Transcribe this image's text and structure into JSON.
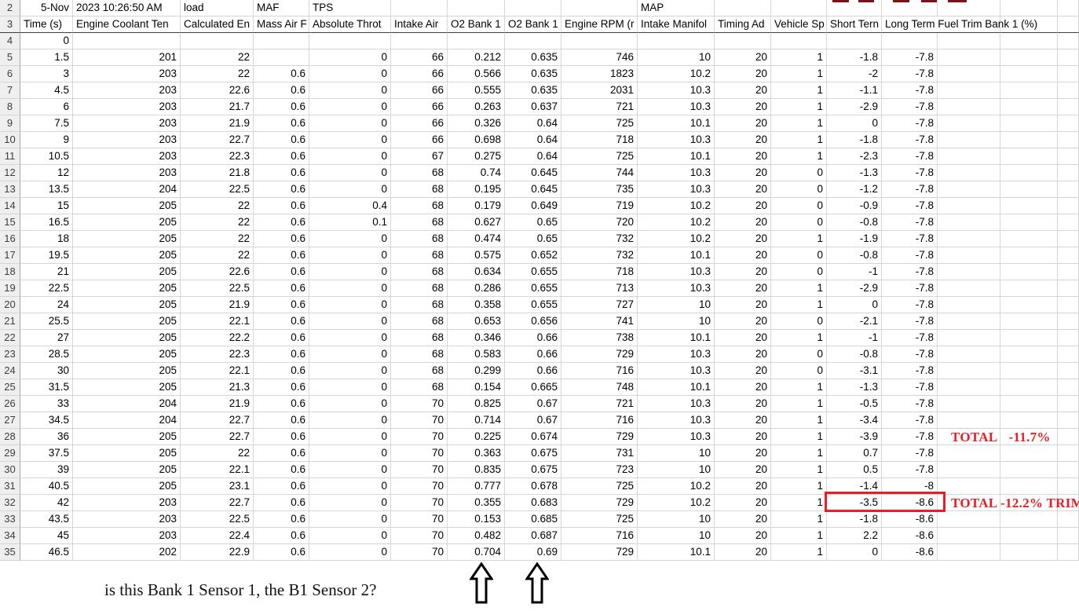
{
  "sheet": {
    "row2": {
      "A": "5-Nov",
      "B": "2023 10:26:50 AM",
      "C": "load",
      "D": "MAF",
      "E": "TPS",
      "J": "MAP"
    },
    "row2_number": "2",
    "row3_number": "3",
    "headers": [
      "Time (s)",
      "Engine Coolant Ten",
      "Calculated En",
      "Mass Air F",
      "Absolute Throt",
      "Intake Air",
      "O2 Bank 1",
      "O2 Bank 1",
      "Engine RPM (r",
      "Intake Manifol",
      "Timing Ad",
      "Vehicle Sp",
      "Short Tern",
      "Long Term Fuel Trim Bank 1 (%)"
    ],
    "rows": [
      {
        "n": "4",
        "cells": [
          "0",
          "",
          "",
          "",
          "",
          "",
          "",
          "",
          "",
          "",
          "",
          "",
          "",
          ""
        ]
      },
      {
        "n": "5",
        "cells": [
          "1.5",
          "201",
          "22",
          "",
          "0",
          "66",
          "0.212",
          "0.635",
          "746",
          "10",
          "20",
          "1",
          "-1.8",
          "-7.8"
        ]
      },
      {
        "n": "6",
        "cells": [
          "3",
          "203",
          "22",
          "0.6",
          "0",
          "66",
          "0.566",
          "0.635",
          "1823",
          "10.2",
          "20",
          "1",
          "-2",
          "-7.8"
        ]
      },
      {
        "n": "7",
        "cells": [
          "4.5",
          "203",
          "22.6",
          "0.6",
          "0",
          "66",
          "0.555",
          "0.635",
          "2031",
          "10.3",
          "20",
          "1",
          "-1.1",
          "-7.8"
        ]
      },
      {
        "n": "8",
        "cells": [
          "6",
          "203",
          "21.7",
          "0.6",
          "0",
          "66",
          "0.263",
          "0.637",
          "721",
          "10.3",
          "20",
          "1",
          "-2.9",
          "-7.8"
        ]
      },
      {
        "n": "9",
        "cells": [
          "7.5",
          "203",
          "21.9",
          "0.6",
          "0",
          "66",
          "0.326",
          "0.64",
          "725",
          "10.1",
          "20",
          "1",
          "0",
          "-7.8"
        ]
      },
      {
        "n": "10",
        "cells": [
          "9",
          "203",
          "22.7",
          "0.6",
          "0",
          "66",
          "0.698",
          "0.64",
          "718",
          "10.3",
          "20",
          "1",
          "-1.8",
          "-7.8"
        ]
      },
      {
        "n": "11",
        "cells": [
          "10.5",
          "203",
          "22.3",
          "0.6",
          "0",
          "67",
          "0.275",
          "0.64",
          "725",
          "10.1",
          "20",
          "1",
          "-2.3",
          "-7.8"
        ]
      },
      {
        "n": "12",
        "cells": [
          "12",
          "203",
          "21.8",
          "0.6",
          "0",
          "68",
          "0.74",
          "0.645",
          "744",
          "10.3",
          "20",
          "0",
          "-1.3",
          "-7.8"
        ]
      },
      {
        "n": "13",
        "cells": [
          "13.5",
          "204",
          "22.5",
          "0.6",
          "0",
          "68",
          "0.195",
          "0.645",
          "735",
          "10.3",
          "20",
          "0",
          "-1.2",
          "-7.8"
        ]
      },
      {
        "n": "14",
        "cells": [
          "15",
          "205",
          "22",
          "0.6",
          "0.4",
          "68",
          "0.179",
          "0.649",
          "719",
          "10.2",
          "20",
          "0",
          "-0.9",
          "-7.8"
        ]
      },
      {
        "n": "15",
        "cells": [
          "16.5",
          "205",
          "22",
          "0.6",
          "0.1",
          "68",
          "0.627",
          "0.65",
          "720",
          "10.2",
          "20",
          "0",
          "-0.8",
          "-7.8"
        ]
      },
      {
        "n": "16",
        "cells": [
          "18",
          "205",
          "22",
          "0.6",
          "0",
          "68",
          "0.474",
          "0.65",
          "732",
          "10.2",
          "20",
          "1",
          "-1.9",
          "-7.8"
        ]
      },
      {
        "n": "17",
        "cells": [
          "19.5",
          "205",
          "22",
          "0.6",
          "0",
          "68",
          "0.575",
          "0.652",
          "732",
          "10.1",
          "20",
          "0",
          "-0.8",
          "-7.8"
        ]
      },
      {
        "n": "18",
        "cells": [
          "21",
          "205",
          "22.6",
          "0.6",
          "0",
          "68",
          "0.634",
          "0.655",
          "718",
          "10.3",
          "20",
          "0",
          "-1",
          "-7.8"
        ]
      },
      {
        "n": "19",
        "cells": [
          "22.5",
          "205",
          "22.5",
          "0.6",
          "0",
          "68",
          "0.286",
          "0.655",
          "713",
          "10.3",
          "20",
          "1",
          "-2.9",
          "-7.8"
        ]
      },
      {
        "n": "20",
        "cells": [
          "24",
          "205",
          "21.9",
          "0.6",
          "0",
          "68",
          "0.358",
          "0.655",
          "727",
          "10",
          "20",
          "1",
          "0",
          "-7.8"
        ]
      },
      {
        "n": "21",
        "cells": [
          "25.5",
          "205",
          "22.1",
          "0.6",
          "0",
          "68",
          "0.653",
          "0.656",
          "741",
          "10",
          "20",
          "0",
          "-2.1",
          "-7.8"
        ]
      },
      {
        "n": "22",
        "cells": [
          "27",
          "205",
          "22.2",
          "0.6",
          "0",
          "68",
          "0.346",
          "0.66",
          "738",
          "10.1",
          "20",
          "1",
          "-1",
          "-7.8"
        ]
      },
      {
        "n": "23",
        "cells": [
          "28.5",
          "205",
          "22.3",
          "0.6",
          "0",
          "68",
          "0.583",
          "0.66",
          "729",
          "10.3",
          "20",
          "0",
          "-0.8",
          "-7.8"
        ]
      },
      {
        "n": "24",
        "cells": [
          "30",
          "205",
          "22.1",
          "0.6",
          "0",
          "68",
          "0.299",
          "0.66",
          "716",
          "10.3",
          "20",
          "0",
          "-3.1",
          "-7.8"
        ]
      },
      {
        "n": "25",
        "cells": [
          "31.5",
          "205",
          "21.3",
          "0.6",
          "0",
          "68",
          "0.154",
          "0.665",
          "748",
          "10.1",
          "20",
          "1",
          "-1.3",
          "-7.8"
        ]
      },
      {
        "n": "26",
        "cells": [
          "33",
          "204",
          "21.9",
          "0.6",
          "0",
          "70",
          "0.825",
          "0.67",
          "721",
          "10.3",
          "20",
          "1",
          "-0.5",
          "-7.8"
        ]
      },
      {
        "n": "27",
        "cells": [
          "34.5",
          "204",
          "22.7",
          "0.6",
          "0",
          "70",
          "0.714",
          "0.67",
          "716",
          "10.3",
          "20",
          "1",
          "-3.4",
          "-7.8"
        ]
      },
      {
        "n": "28",
        "cells": [
          "36",
          "205",
          "22.7",
          "0.6",
          "0",
          "70",
          "0.225",
          "0.674",
          "729",
          "10.3",
          "20",
          "1",
          "-3.9",
          "-7.8"
        ]
      },
      {
        "n": "29",
        "cells": [
          "37.5",
          "205",
          "22",
          "0.6",
          "0",
          "70",
          "0.363",
          "0.675",
          "731",
          "10",
          "20",
          "1",
          "0.7",
          "-7.8"
        ]
      },
      {
        "n": "30",
        "cells": [
          "39",
          "205",
          "22.1",
          "0.6",
          "0",
          "70",
          "0.835",
          "0.675",
          "723",
          "10",
          "20",
          "1",
          "0.5",
          "-7.8"
        ]
      },
      {
        "n": "31",
        "cells": [
          "40.5",
          "205",
          "23.1",
          "0.6",
          "0",
          "70",
          "0.777",
          "0.678",
          "725",
          "10.2",
          "20",
          "1",
          "-1.4",
          "-8"
        ]
      },
      {
        "n": "32",
        "cells": [
          "42",
          "203",
          "22.7",
          "0.6",
          "0",
          "70",
          "0.355",
          "0.683",
          "729",
          "10.2",
          "20",
          "1",
          "-3.5",
          "-8.6"
        ]
      },
      {
        "n": "33",
        "cells": [
          "43.5",
          "203",
          "22.5",
          "0.6",
          "0",
          "70",
          "0.153",
          "0.685",
          "725",
          "10",
          "20",
          "1",
          "-1.8",
          "-8.6"
        ]
      },
      {
        "n": "34",
        "cells": [
          "45",
          "203",
          "22.4",
          "0.6",
          "0",
          "70",
          "0.482",
          "0.687",
          "716",
          "10",
          "20",
          "1",
          "2.2",
          "-8.6"
        ]
      },
      {
        "n": "35",
        "cells": [
          "46.5",
          "202",
          "22.9",
          "0.6",
          "0",
          "70",
          "0.704",
          "0.69",
          "729",
          "10.1",
          "20",
          "1",
          "0",
          "-8.6"
        ]
      }
    ]
  },
  "annotations": {
    "accent_red": "#ed1c24",
    "dark_red": "#7a1216",
    "grid_line_color": "#d6d6d6",
    "row_header_fill": "#efefef",
    "total_row28": {
      "label": "TOTAL",
      "value": "-11.7%"
    },
    "total_row32": {
      "text": "TOTAL -12.2% TRIM"
    },
    "highlighted_cells": [
      "-3.5",
      "-8.6"
    ],
    "question": "is this Bank 1 Sensor 1, the B1 Sensor 2?",
    "arrow_icons": [
      "up-arrow-icon",
      "up-arrow-icon"
    ]
  }
}
